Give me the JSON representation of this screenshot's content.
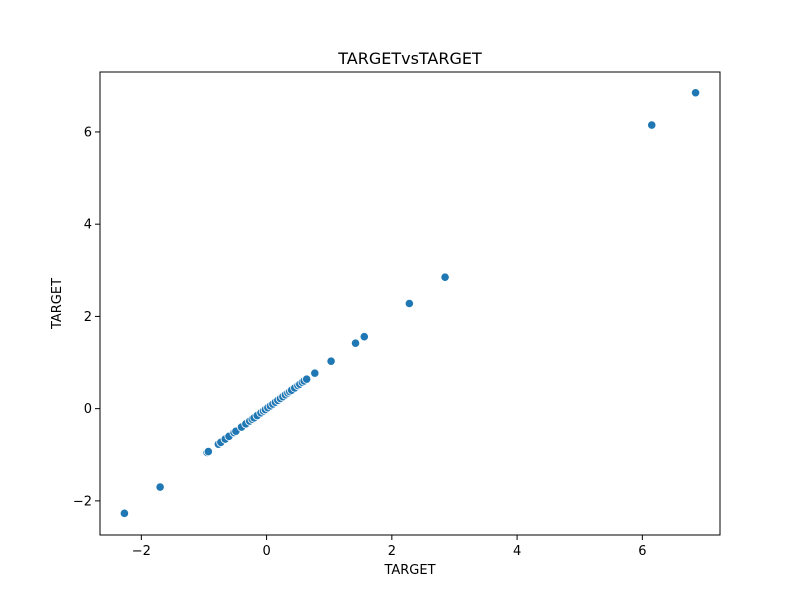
{
  "chart_data": {
    "type": "scatter",
    "title": "TARGETvsTARGET",
    "xlabel": "TARGET",
    "ylabel": "TARGET",
    "xlim": [
      -2.66,
      7.24
    ],
    "ylim": [
      -2.74,
      7.3
    ],
    "xticks": [
      -2,
      0,
      2,
      4,
      6
    ],
    "yticks": [
      -2,
      0,
      2,
      4,
      6
    ],
    "xtick_labels": [
      "−2",
      "0",
      "2",
      "4",
      "6"
    ],
    "ytick_labels": [
      "−2",
      "0",
      "2",
      "4",
      "6"
    ],
    "grid": false,
    "marker_color": "#1f77b4",
    "points": [
      {
        "x": -2.27,
        "y": -2.27
      },
      {
        "x": -1.7,
        "y": -1.7
      },
      {
        "x": -0.95,
        "y": -0.95
      },
      {
        "x": -0.93,
        "y": -0.93
      },
      {
        "x": -0.77,
        "y": -0.77
      },
      {
        "x": -0.73,
        "y": -0.73
      },
      {
        "x": -0.66,
        "y": -0.66
      },
      {
        "x": -0.6,
        "y": -0.6
      },
      {
        "x": -0.52,
        "y": -0.52
      },
      {
        "x": -0.49,
        "y": -0.49
      },
      {
        "x": -0.4,
        "y": -0.4
      },
      {
        "x": -0.33,
        "y": -0.33
      },
      {
        "x": -0.27,
        "y": -0.27
      },
      {
        "x": -0.23,
        "y": -0.23
      },
      {
        "x": -0.2,
        "y": -0.2
      },
      {
        "x": -0.15,
        "y": -0.15
      },
      {
        "x": -0.09,
        "y": -0.09
      },
      {
        "x": -0.05,
        "y": -0.05
      },
      {
        "x": -0.02,
        "y": -0.02
      },
      {
        "x": 0.02,
        "y": 0.02
      },
      {
        "x": 0.06,
        "y": 0.06
      },
      {
        "x": 0.1,
        "y": 0.1
      },
      {
        "x": 0.14,
        "y": 0.14
      },
      {
        "x": 0.18,
        "y": 0.18
      },
      {
        "x": 0.22,
        "y": 0.22
      },
      {
        "x": 0.26,
        "y": 0.26
      },
      {
        "x": 0.3,
        "y": 0.3
      },
      {
        "x": 0.34,
        "y": 0.34
      },
      {
        "x": 0.37,
        "y": 0.37
      },
      {
        "x": 0.4,
        "y": 0.4
      },
      {
        "x": 0.45,
        "y": 0.45
      },
      {
        "x": 0.5,
        "y": 0.5
      },
      {
        "x": 0.53,
        "y": 0.53
      },
      {
        "x": 0.57,
        "y": 0.57
      },
      {
        "x": 0.6,
        "y": 0.6
      },
      {
        "x": 0.64,
        "y": 0.64
      },
      {
        "x": 0.77,
        "y": 0.77
      },
      {
        "x": 1.03,
        "y": 1.03
      },
      {
        "x": 1.42,
        "y": 1.42
      },
      {
        "x": 1.56,
        "y": 1.56
      },
      {
        "x": 2.28,
        "y": 2.28
      },
      {
        "x": 2.85,
        "y": 2.85
      },
      {
        "x": 6.15,
        "y": 6.15
      },
      {
        "x": 6.85,
        "y": 6.85
      }
    ]
  }
}
